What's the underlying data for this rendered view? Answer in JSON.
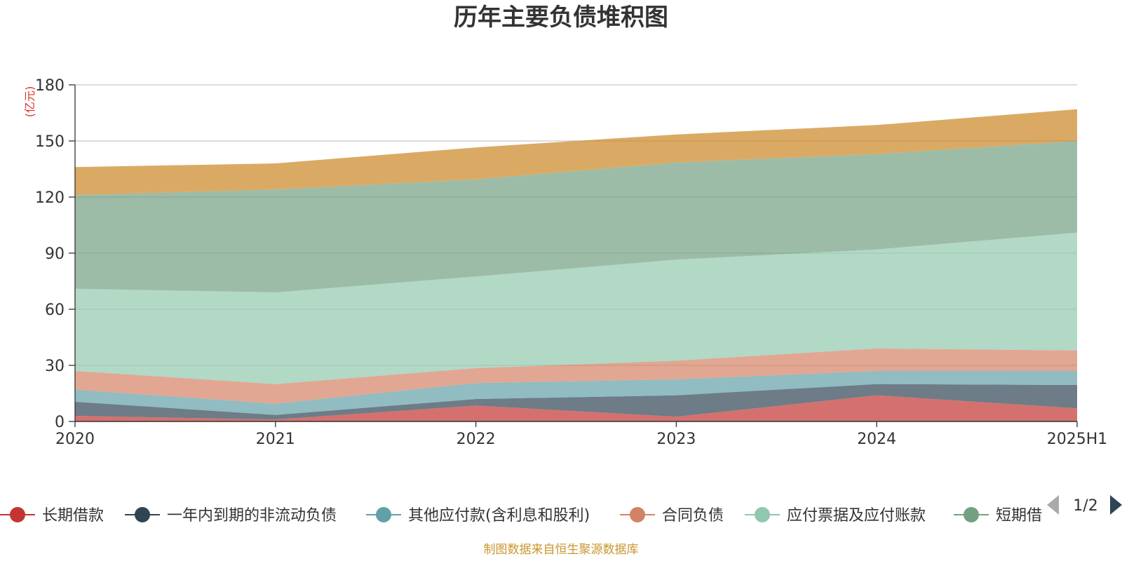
{
  "chart_data": {
    "type": "area",
    "stacked": true,
    "title": "历年主要负债堆积图",
    "unit_label": "(亿元)",
    "categories": [
      "2020",
      "2021",
      "2022",
      "2023",
      "2024",
      "2025H1"
    ],
    "ylim": [
      0,
      180
    ],
    "yticks": [
      0,
      30,
      60,
      90,
      120,
      150,
      180
    ],
    "grid": true,
    "series": [
      {
        "name": "长期借款",
        "values": [
          3,
          1,
          8.5,
          2.5,
          14,
          7
        ],
        "color": "#c23531"
      },
      {
        "name": "一年内到期的非流动负债",
        "values": [
          7.5,
          2.5,
          3.5,
          11.5,
          6,
          12.5
        ],
        "color": "#2f4554"
      },
      {
        "name": "其他应付款(含利息和股利)",
        "values": [
          6.5,
          6,
          8.5,
          8.5,
          7,
          7.5
        ],
        "color": "#61a0a8"
      },
      {
        "name": "合同负债",
        "values": [
          10,
          10.5,
          8,
          10,
          12,
          11
        ],
        "color": "#d48265"
      },
      {
        "name": "应付票据及应付账款",
        "values": [
          44,
          49,
          49,
          54,
          53,
          63
        ],
        "color": "#91c7ae"
      },
      {
        "name": "短期借款",
        "values": [
          50,
          55,
          52,
          52,
          51,
          49
        ],
        "color": "#749f83"
      },
      {
        "name": "",
        "values": [
          15,
          14,
          17,
          15,
          15.5,
          17
        ],
        "color": "#ca8622"
      }
    ],
    "legend": {
      "position": "bottom",
      "visible_items": [
        "长期借款",
        "一年内到期的非流动负债",
        "其他应付款(含利息和股利)",
        "合同负债",
        "应付票据及应付账款",
        "短期借"
      ],
      "page": "1/2"
    }
  },
  "footer": {
    "source_text": "制图数据来自恒生聚源数据库"
  }
}
